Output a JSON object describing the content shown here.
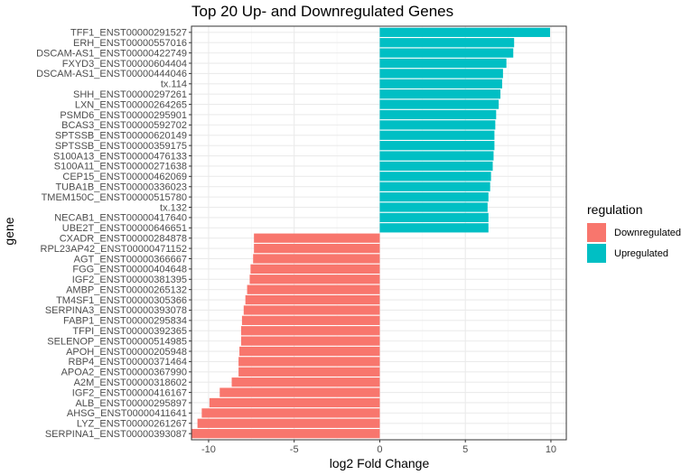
{
  "chart_data": {
    "type": "bar",
    "orientation": "horizontal",
    "title": "Top 20 Up- and Downregulated Genes",
    "xlabel": "log2 Fold Change",
    "ylabel": "gene",
    "xlim": [
      -11.0,
      10.9
    ],
    "x_ticks": [
      -10,
      -5,
      0,
      5,
      10
    ],
    "grid": true,
    "legend": {
      "title": "regulation",
      "placement": "right",
      "entries": [
        {
          "name": "Downregulated",
          "color": "#F8766D"
        },
        {
          "name": "Upregulated",
          "color": "#00BFC4"
        }
      ]
    },
    "categories": [
      "TFF1_ENST00000291527",
      "ERH_ENST00000557016",
      "DSCAM-AS1_ENST00000422749",
      "FXYD3_ENST00000604404",
      "DSCAM-AS1_ENST00000444046",
      "tx.114",
      "SHH_ENST00000297261",
      "LXN_ENST00000264265",
      "PSMD6_ENST00000295901",
      "BCAS3_ENST00000592702",
      "SPTSSB_ENST00000620149",
      "SPTSSB_ENST00000359175",
      "S100A13_ENST00000476133",
      "S100A11_ENST00000271638",
      "CEP15_ENST00000462069",
      "TUBA1B_ENST00000336023",
      "TMEM150C_ENST00000515780",
      "tx.132",
      "NECAB1_ENST00000417640",
      "UBE2T_ENST00000646651",
      "CXADR_ENST00000284878",
      "RPL23AP42_ENST00000471152",
      "AGT_ENST00000366667",
      "FGG_ENST00000404648",
      "IGF2_ENST00000381395",
      "AMBP_ENST00000265132",
      "TM4SF1_ENST00000305366",
      "SERPINA3_ENST00000393078",
      "FABP1_ENST00000295834",
      "TFPI_ENST00000392365",
      "SELENOP_ENST00000514985",
      "APOH_ENST00000205948",
      "RBP4_ENST00000371464",
      "APOA2_ENST00000367990",
      "A2M_ENST00000318602",
      "IGF2_ENST00000416167",
      "ALB_ENST00000295897",
      "AHSG_ENST00000411641",
      "LYZ_ENST00000261267",
      "SERPINA1_ENST00000393087"
    ],
    "values": [
      9.95,
      7.85,
      7.8,
      7.4,
      7.2,
      7.15,
      7.05,
      6.95,
      6.8,
      6.75,
      6.7,
      6.7,
      6.65,
      6.6,
      6.5,
      6.45,
      6.35,
      6.3,
      6.35,
      6.35,
      -7.35,
      -7.35,
      -7.4,
      -7.55,
      -7.6,
      -7.75,
      -7.85,
      -7.95,
      -8.05,
      -8.1,
      -8.1,
      -8.2,
      -8.25,
      -8.25,
      -8.65,
      -9.35,
      -9.95,
      -10.4,
      -10.65,
      -11.0
    ],
    "regulation": [
      "Upregulated",
      "Upregulated",
      "Upregulated",
      "Upregulated",
      "Upregulated",
      "Upregulated",
      "Upregulated",
      "Upregulated",
      "Upregulated",
      "Upregulated",
      "Upregulated",
      "Upregulated",
      "Upregulated",
      "Upregulated",
      "Upregulated",
      "Upregulated",
      "Upregulated",
      "Upregulated",
      "Upregulated",
      "Upregulated",
      "Downregulated",
      "Downregulated",
      "Downregulated",
      "Downregulated",
      "Downregulated",
      "Downregulated",
      "Downregulated",
      "Downregulated",
      "Downregulated",
      "Downregulated",
      "Downregulated",
      "Downregulated",
      "Downregulated",
      "Downregulated",
      "Downregulated",
      "Downregulated",
      "Downregulated",
      "Downregulated",
      "Downregulated",
      "Downregulated"
    ]
  },
  "colors": {
    "panel_border": "#333333",
    "grid_major": "#EBEBEB",
    "grid_minor": "#F5F5F5"
  }
}
